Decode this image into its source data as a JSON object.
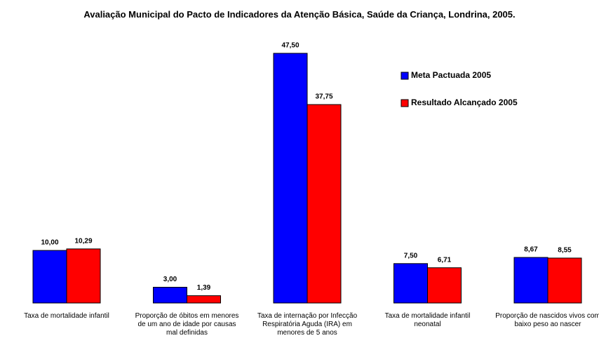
{
  "chart_data": {
    "type": "bar",
    "title": "Avaliação Municipal do Pacto de Indicadores da Atenção Básica, Saúde da Criança, Londrina, 2005.",
    "categories": [
      "Taxa de mortalidade infantil",
      "Proporção de óbitos em menores de um ano de idade por causas mal definidas",
      "Taxa de internação por Infecção Respiratória Aguda (IRA) em menores de 5 anos",
      "Taxa de mortalidade infantil neonatal",
      "Proporção de nascidos vivos com baixo peso ao nascer"
    ],
    "series": [
      {
        "name": "Meta Pactuada 2005",
        "color": "#0000ff",
        "values": [
          10.0,
          3.0,
          47.5,
          7.5,
          8.67
        ],
        "value_labels": [
          "10,00",
          "3,00",
          "47,50",
          "7,50",
          "8,67"
        ]
      },
      {
        "name": "Resultado Alcançado 2005",
        "color": "#ff0000",
        "values": [
          10.29,
          1.39,
          37.75,
          6.71,
          8.55
        ],
        "value_labels": [
          "10,29",
          "1,39",
          "37,75",
          "6,71",
          "8,55"
        ]
      }
    ],
    "legend": "upper right"
  }
}
